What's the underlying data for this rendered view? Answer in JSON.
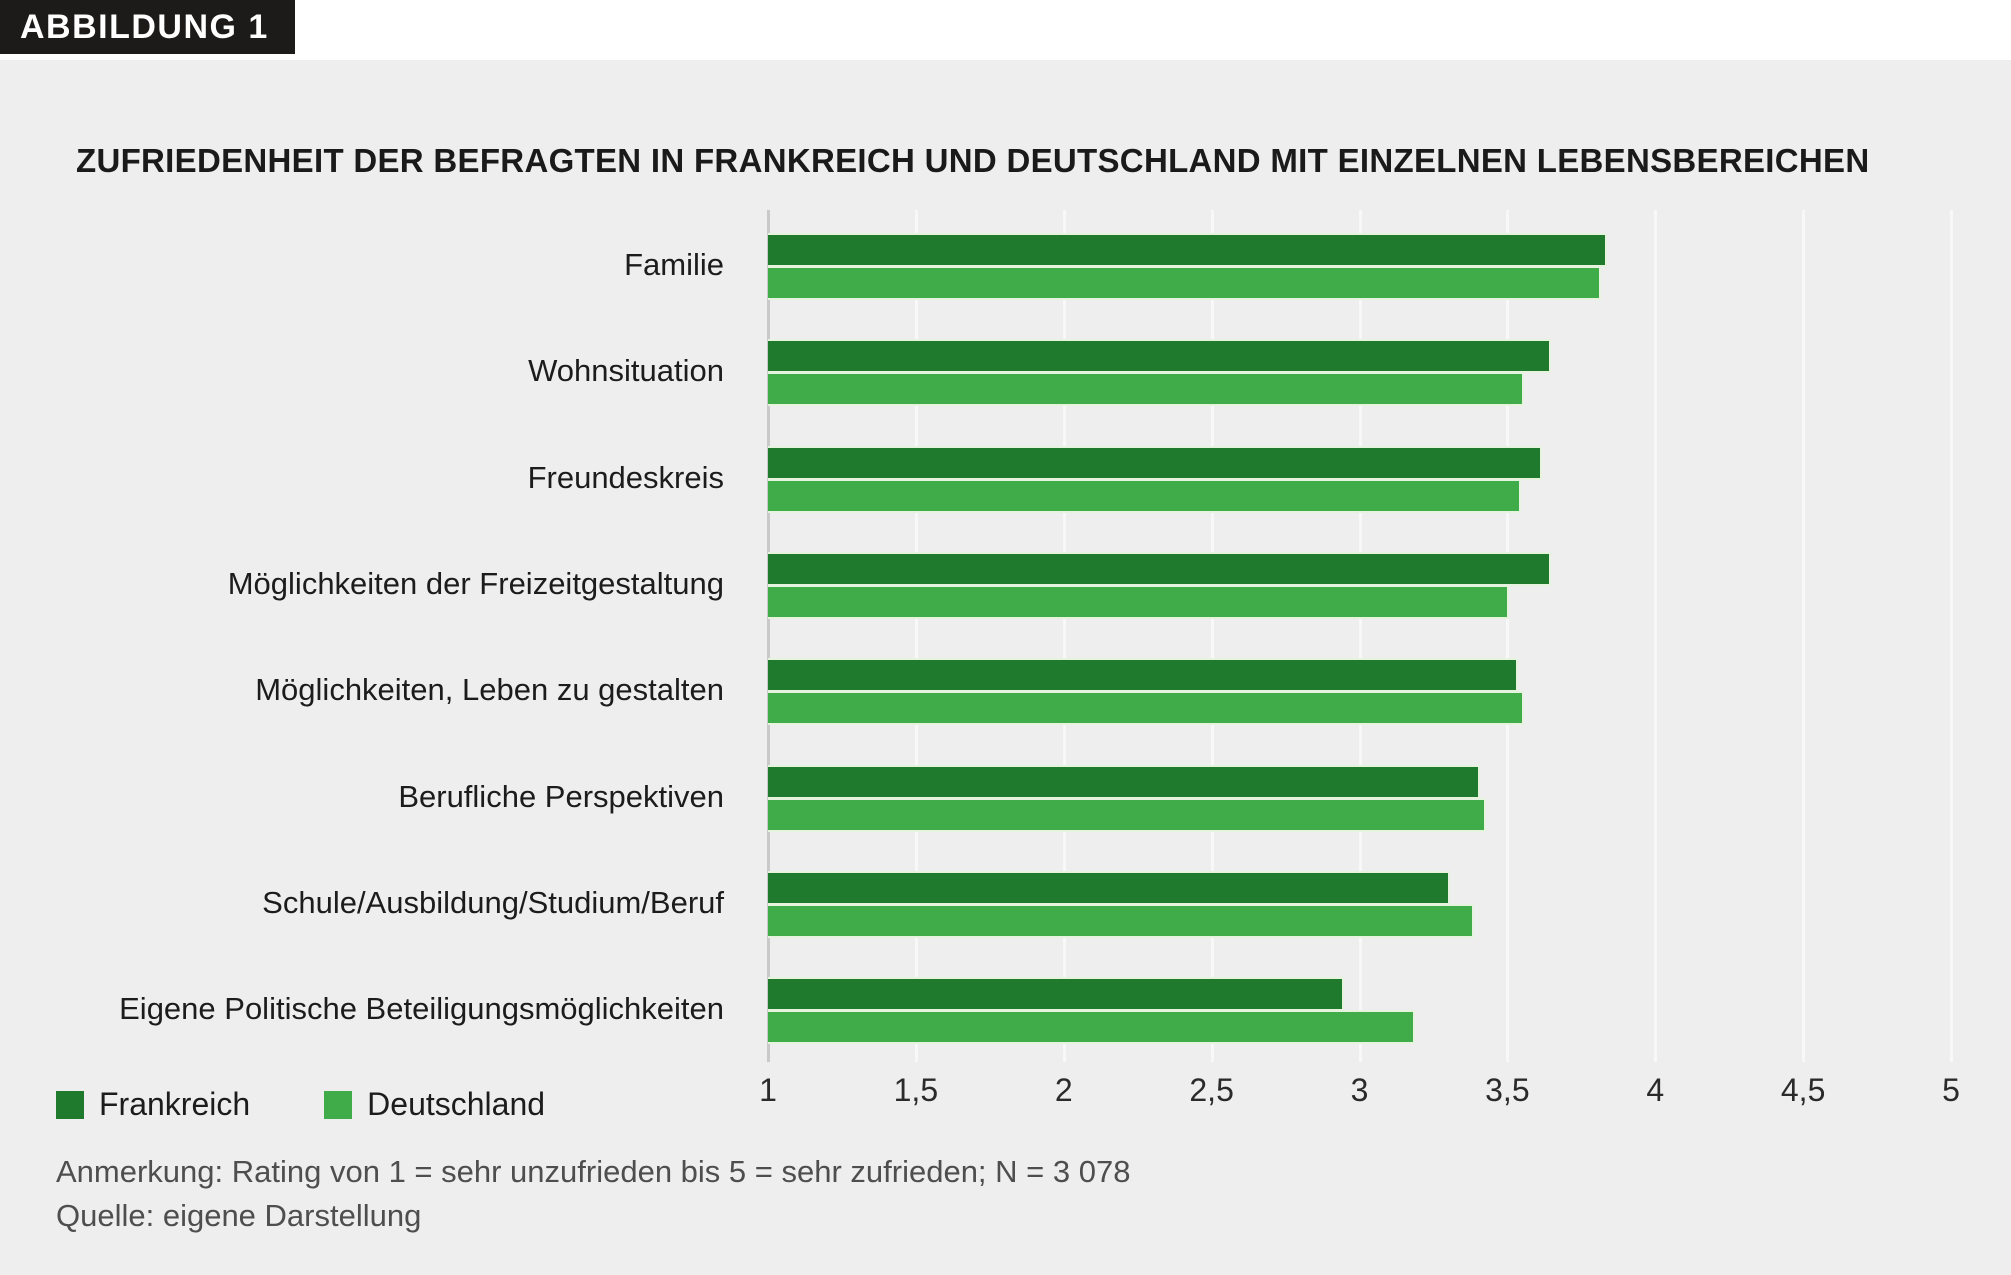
{
  "figure_label": "ABBILDUNG 1",
  "title": "ZUFRIEDENHEIT DER BEFRAGTEN IN FRANKREICH UND DEUTSCHLAND MIT EINZELNEN LEBENSBEREICHEN",
  "note": "Anmerkung: Rating von 1 = sehr unzufrieden bis 5 = sehr zufrieden; N = 3 078",
  "source": "Quelle: eigene Darstellung",
  "colors": {
    "frankreich": "#1f7a2e",
    "deutschland": "#3fac49",
    "panel_background": "#eeeeee",
    "badge_background": "#1d1b1a"
  },
  "legend": [
    {
      "label": "Frankreich",
      "color": "#1f7a2e"
    },
    {
      "label": "Deutschland",
      "color": "#3fac49"
    }
  ],
  "chart_data": {
    "type": "bar",
    "orientation": "horizontal",
    "title": "ZUFRIEDENHEIT DER BEFRAGTEN IN FRANKREICH UND DEUTSCHLAND MIT EINZELNEN LEBENSBEREICHEN",
    "categories": [
      "Familie",
      "Wohnsituation",
      "Freundeskreis",
      "Möglichkeiten der Freizeitgestaltung",
      "Möglichkeiten, Leben zu gestalten",
      "Berufliche Perspektiven",
      "Schule/Ausbildung/Studium/Beruf",
      "Eigene Politische Beteiligungsmöglichkeiten"
    ],
    "series": [
      {
        "name": "Frankreich",
        "color": "#1f7a2e",
        "values": [
          3.83,
          3.64,
          3.61,
          3.64,
          3.53,
          3.4,
          3.3,
          2.94
        ]
      },
      {
        "name": "Deutschland",
        "color": "#3fac49",
        "values": [
          3.81,
          3.55,
          3.54,
          3.5,
          3.55,
          3.42,
          3.38,
          3.18
        ]
      }
    ],
    "xlim": [
      1,
      5
    ],
    "xticks": [
      "1",
      "1,5",
      "2",
      "2,5",
      "3",
      "3,5",
      "4",
      "4,5",
      "5"
    ],
    "xtick_values": [
      1,
      1.5,
      2,
      2.5,
      3,
      3.5,
      4,
      4.5,
      5
    ],
    "grid": true,
    "legend_position": "bottom-left"
  }
}
